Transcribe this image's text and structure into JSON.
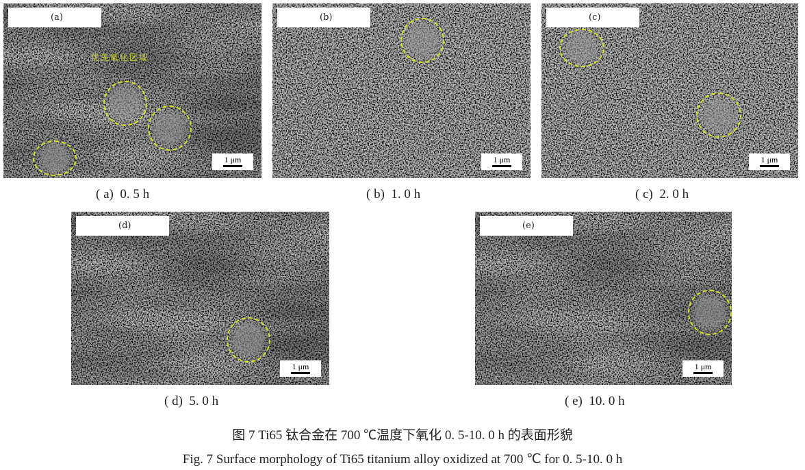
{
  "panels": [
    {
      "label": "(a)",
      "scale": "1 μm",
      "caption": "( a)  0. 5 h",
      "annotation": "优先氧化区域"
    },
    {
      "label": "(b)",
      "scale": "1 μm",
      "caption": "( b)  1. 0 h"
    },
    {
      "label": "(c)",
      "scale": "1 μm",
      "caption": "( c)  2. 0 h"
    },
    {
      "label": "(d)",
      "scale": "1 μm",
      "caption": "( d)  5. 0 h"
    },
    {
      "label": "(e)",
      "scale": "1 μm",
      "caption": "( e)  10. 0 h"
    }
  ],
  "caption_cn": "图 7   Ti65 钛合金在 700 ℃温度下氧化 0. 5-10. 0 h 的表面形貌",
  "caption_en": "Fig. 7   Surface morphology of Ti65 titanium alloy oxidized at 700 ℃ for 0. 5-10. 0 h",
  "colors": {
    "circle": "#d6e320",
    "annotation": "#c9d21d"
  }
}
